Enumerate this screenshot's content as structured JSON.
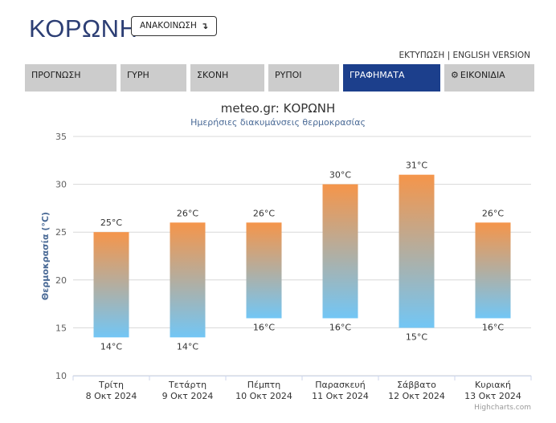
{
  "header": {
    "title": "ΚΟΡΩΝΗ",
    "announce_label": "ΑΝΑΚΟΙΝΩΣΗ",
    "announce_arrow": "↴"
  },
  "toplinks": {
    "print": "ΕΚΤΥΠΩΣΗ",
    "separator": "|",
    "english": "ENGLISH VERSION"
  },
  "nav": {
    "tabs": [
      {
        "label": "ΠΡΟΓΝΩΣΗ",
        "active": false
      },
      {
        "label": "ΓΥΡΗ",
        "active": false
      },
      {
        "label": "ΣΚΟΝΗ",
        "active": false
      },
      {
        "label": "ΡΥΠΟΙ",
        "active": false
      },
      {
        "label": "ΓΡΑΦΗΜΑΤΑ",
        "active": true
      },
      {
        "label": "ΕΙΚΟΝΙΔΙΑ",
        "active": false,
        "icon": "gear-icon"
      }
    ]
  },
  "chart_data": {
    "type": "bar",
    "title": "meteo.gr: ΚΟΡΩΝΗ",
    "subtitle": "Ημερήσιες διακυμάνσεις θερμοκρασίας",
    "ylabel": "Θερμοκρασία (°C)",
    "ylim": [
      10,
      35
    ],
    "yticks": [
      10,
      15,
      20,
      25,
      30,
      35
    ],
    "grid": true,
    "categories": [
      {
        "day": "Τρίτη",
        "date": "8 Οκτ 2024"
      },
      {
        "day": "Τετάρτη",
        "date": "9 Οκτ 2024"
      },
      {
        "day": "Πέμπτη",
        "date": "10 Οκτ 2024"
      },
      {
        "day": "Παρασκευή",
        "date": "11 Οκτ 2024"
      },
      {
        "day": "Σάββατο",
        "date": "12 Οκτ 2024"
      },
      {
        "day": "Κυριακή",
        "date": "13 Οκτ 2024"
      }
    ],
    "min": [
      14,
      14,
      16,
      16,
      15,
      16
    ],
    "max": [
      25,
      26,
      26,
      30,
      31,
      26
    ],
    "unit": "°C",
    "colors": {
      "top": "#f5954a",
      "bottom": "#72c6f5"
    }
  },
  "credit": "Highcharts.com"
}
